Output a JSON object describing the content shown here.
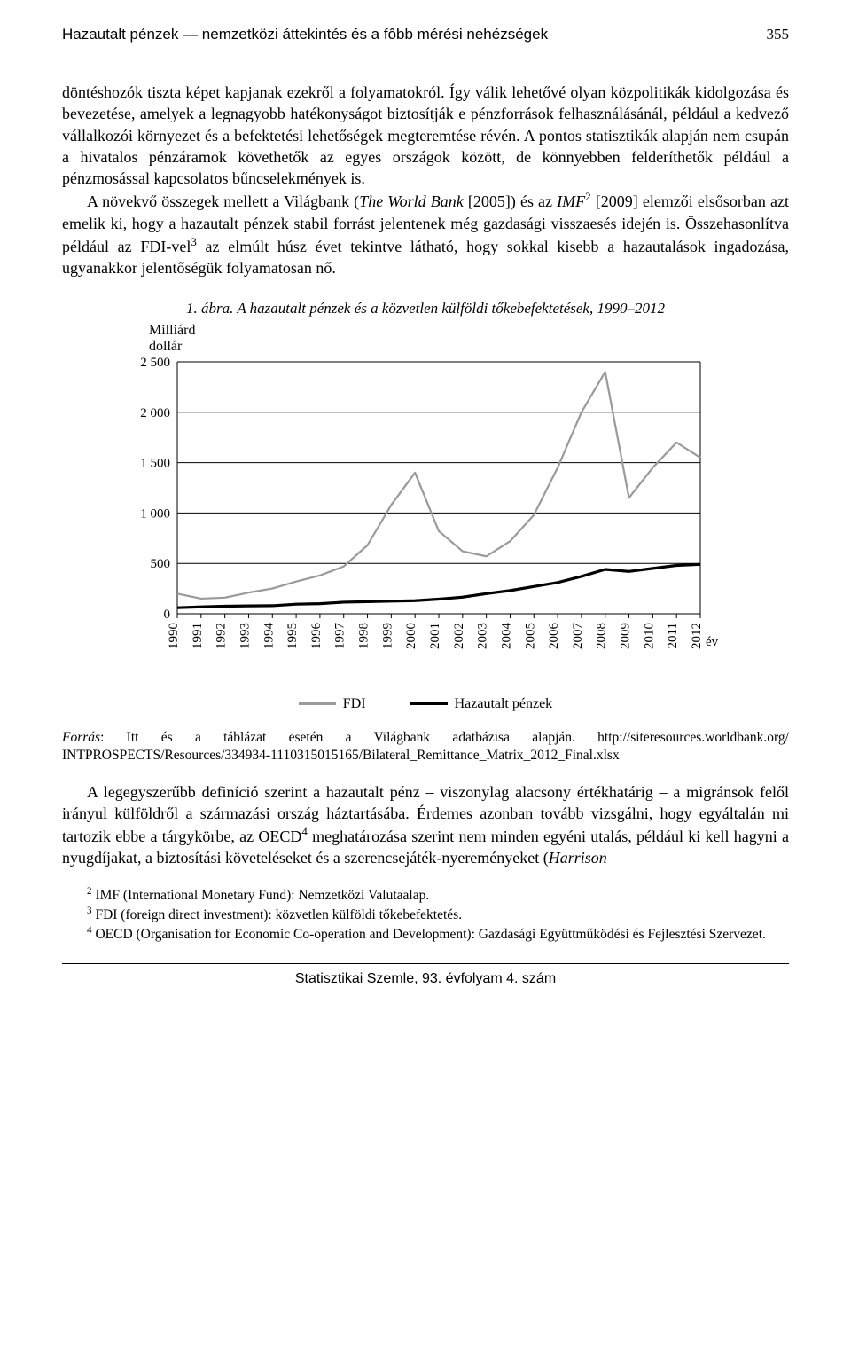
{
  "header": {
    "running_title": "Hazautalt pénzek — nemzetközi áttekintés és a fôbb mérési nehézségek",
    "page_number": "355"
  },
  "paragraphs": {
    "p1": "döntéshozók tiszta képet kapjanak ezekről a folyamatokról. Így válik lehetővé olyan közpolitikák kidolgozása és bevezetése, amelyek a legnagyobb hatékonyságot biztosítják e pénzforrások felhasználásánál, például a kedvező vállalkozói környezet és a befektetési lehetőségek megteremtése révén. A pontos statisztikák alapján nem csupán a hivatalos pénzáramok követhetők az egyes országok között, de könnyebben felderíthetők például a pénzmosással kapcsolatos bűncselekmények is.",
    "p2_pre": "A növekvő összegek mellett a Világbank (",
    "p2_em1": "The World Bank",
    "p2_mid1": " [2005]) és az ",
    "p2_em2": "IMF",
    "p2_sup1": "2",
    "p2_mid2": " [2009] elemzői elsősorban azt emelik ki, hogy a hazautalt pénzek stabil forrást jelentenek még gazdasági visszaesés idején is. Összehasonlítva például az FDI-vel",
    "p2_sup2": "3",
    "p2_post": " az elmúlt húsz évet tekintve látható, hogy sokkal kisebb a hazautalások ingadozása, ugyanakkor jelentőségük folyamatosan nő.",
    "p3_pre": "A legegyszerűbb definíció szerint a hazautalt pénz – viszonylag alacsony értékhatárig – a migránsok felől irányul külföldről a származási ország háztartásába. Érdemes azonban tovább vizsgálni, hogy egyáltalán mi tartozik ebbe a tárgykörbe, az OECD",
    "p3_sup": "4",
    "p3_post": " meghatározása szerint nem minden egyéni utalás, például ki kell hagyni a nyugdíjakat, a biztosítási követeléseket és a szerencsejáték-nyereményeket (",
    "p3_em": "Harrison"
  },
  "figure": {
    "caption": "1. ábra. A hazautalt pénzek és a közvetlen külföldi tőkebefektetések, 1990–2012",
    "y_axis_label_l1": "Milliárd",
    "y_axis_label_l2": "dollár",
    "x_axis_label": "év",
    "type": "line",
    "years": [
      "1990",
      "1991",
      "1992",
      "1993",
      "1994",
      "1995",
      "1996",
      "1997",
      "1998",
      "1999",
      "2000",
      "2001",
      "2002",
      "2003",
      "2004",
      "2005",
      "2006",
      "2007",
      "2008",
      "2009",
      "2010",
      "2011",
      "2012"
    ],
    "y_ticks": [
      0,
      500,
      1000,
      1500,
      2000,
      2500
    ],
    "y_tick_labels": [
      "0",
      "500",
      "1 000",
      "1 500",
      "2 000",
      "2 500"
    ],
    "ylim": [
      0,
      2500
    ],
    "series": {
      "fdi": {
        "label": "FDI",
        "color": "#9a9a9a",
        "stroke_width": 2.2,
        "values": [
          200,
          150,
          160,
          210,
          250,
          320,
          380,
          470,
          680,
          1080,
          1400,
          820,
          620,
          570,
          720,
          980,
          1450,
          2000,
          2400,
          1150,
          1450,
          1700,
          1550
        ]
      },
      "remit": {
        "label": "Hazautalt pénzek",
        "color": "#000000",
        "stroke_width": 3.2,
        "values": [
          60,
          68,
          75,
          78,
          80,
          95,
          100,
          115,
          120,
          125,
          130,
          145,
          165,
          200,
          230,
          270,
          310,
          370,
          440,
          420,
          450,
          480,
          490
        ]
      }
    },
    "background_color": "#ffffff",
    "grid_color": "#000000",
    "axis_color": "#000000",
    "tick_fontsize": 15
  },
  "source": {
    "label": "Forrás",
    "text": ": Itt és a táblázat esetén a Világbank adatbázisa alapján. http://siteresources.worldbank.org/ INTPROSPECTS/Resources/334934-1110315015165/Bilateral_Remittance_Matrix_2012_Final.xlsx"
  },
  "footnotes": {
    "f2": " IMF (International Monetary Fund): Nemzetközi Valutaalap.",
    "f3": " FDI (foreign direct investment): közvetlen külföldi tőkebefektetés.",
    "f4": " OECD (Organisation for Economic Co-operation and Development): Gazdasági Együttműködési és Fejlesztési Szervezet."
  },
  "footer": {
    "text": "Statisztikai Szemle, 93. évfolyam 4. szám"
  }
}
